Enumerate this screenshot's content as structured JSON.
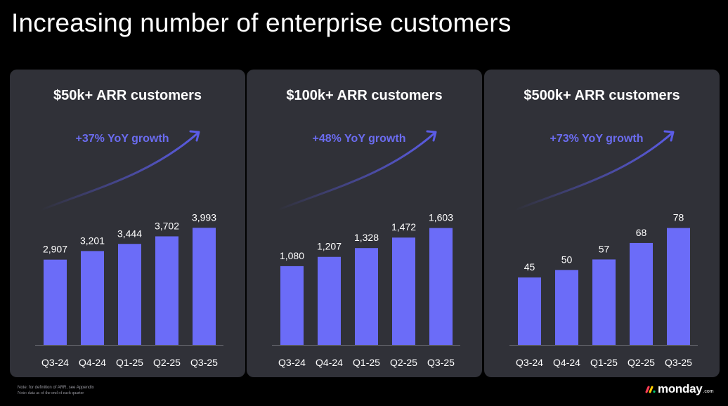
{
  "title": "Increasing number of enterprise customers",
  "colors": {
    "background": "#000000",
    "panel": "#303138",
    "bar": "#6b6cf8",
    "growth_text": "#6b6cf0",
    "arrow": "#5b5ce6"
  },
  "chart_data": [
    {
      "type": "bar",
      "title": "$50k+ ARR customers",
      "annotation": "+37% YoY growth",
      "categories": [
        "Q3-24",
        "Q4-24",
        "Q1-25",
        "Q2-25",
        "Q3-25"
      ],
      "values": [
        2907,
        3201,
        3444,
        3702,
        3993
      ],
      "value_labels": [
        "2,907",
        "3,201",
        "3,444",
        "3,702",
        "3,993"
      ],
      "ylim": [
        0,
        4600
      ],
      "grid": false
    },
    {
      "type": "bar",
      "title": "$100k+ ARR customers",
      "annotation": "+48% YoY growth",
      "categories": [
        "Q3-24",
        "Q4-24",
        "Q1-25",
        "Q2-25",
        "Q3-25"
      ],
      "values": [
        1080,
        1207,
        1328,
        1472,
        1603
      ],
      "value_labels": [
        "1,080",
        "1,207",
        "1,328",
        "1,472",
        "1,603"
      ],
      "ylim": [
        0,
        1850
      ],
      "grid": false
    },
    {
      "type": "bar",
      "title": "$500k+ ARR customers",
      "annotation": "+73% YoY growth",
      "categories": [
        "Q3-24",
        "Q4-24",
        "Q1-25",
        "Q2-25",
        "Q3-25"
      ],
      "values": [
        45,
        50,
        57,
        68,
        78
      ],
      "value_labels": [
        "45",
        "50",
        "57",
        "68",
        "78"
      ],
      "ylim": [
        0,
        90
      ],
      "grid": false
    }
  ],
  "footnotes": [
    "Note: for definition of ARR, see Appendix",
    "Note: data as of the end of each quarter"
  ],
  "logo": {
    "icon": "monday-logo-icon",
    "word": "monday",
    "suffix": ".com"
  }
}
